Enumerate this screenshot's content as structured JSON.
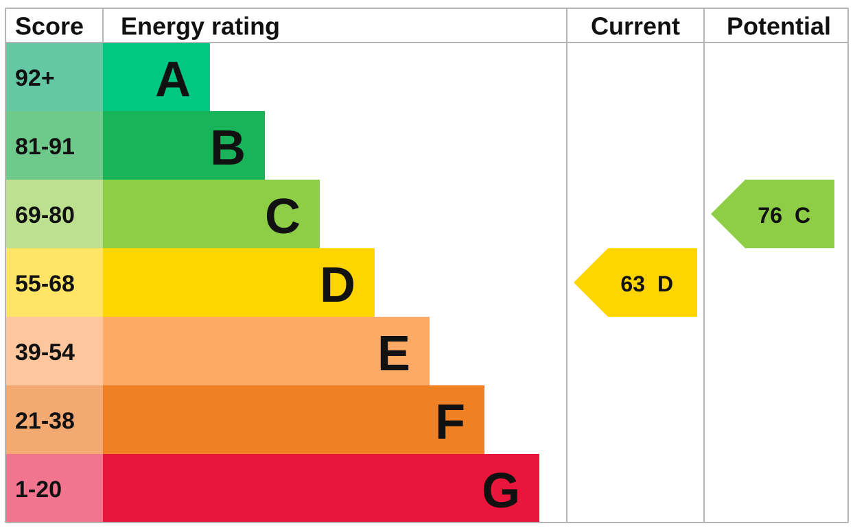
{
  "header": {
    "score": "Score",
    "energy_rating": "Energy rating",
    "current": "Current",
    "potential": "Potential"
  },
  "bands": [
    {
      "score": "92+",
      "letter": "A",
      "color": "#00c781",
      "score_color": "#64c8a5"
    },
    {
      "score": "81-91",
      "letter": "B",
      "color": "#19b459",
      "score_color": "#6ec98a"
    },
    {
      "score": "69-80",
      "letter": "C",
      "color": "#8dce46",
      "score_color": "#bce08f"
    },
    {
      "score": "55-68",
      "letter": "D",
      "color": "#ffd500",
      "score_color": "#ffe466"
    },
    {
      "score": "39-54",
      "letter": "E",
      "color": "#fcaa65",
      "score_color": "#fdc69d"
    },
    {
      "score": "21-38",
      "letter": "F",
      "color": "#ef8023",
      "score_color": "#f3aa72"
    },
    {
      "score": "1-20",
      "letter": "G",
      "color": "#e9153b",
      "score_color": "#f2758f"
    }
  ],
  "current": {
    "value": 63,
    "letter": "D"
  },
  "potential": {
    "value": 76,
    "letter": "C"
  }
}
